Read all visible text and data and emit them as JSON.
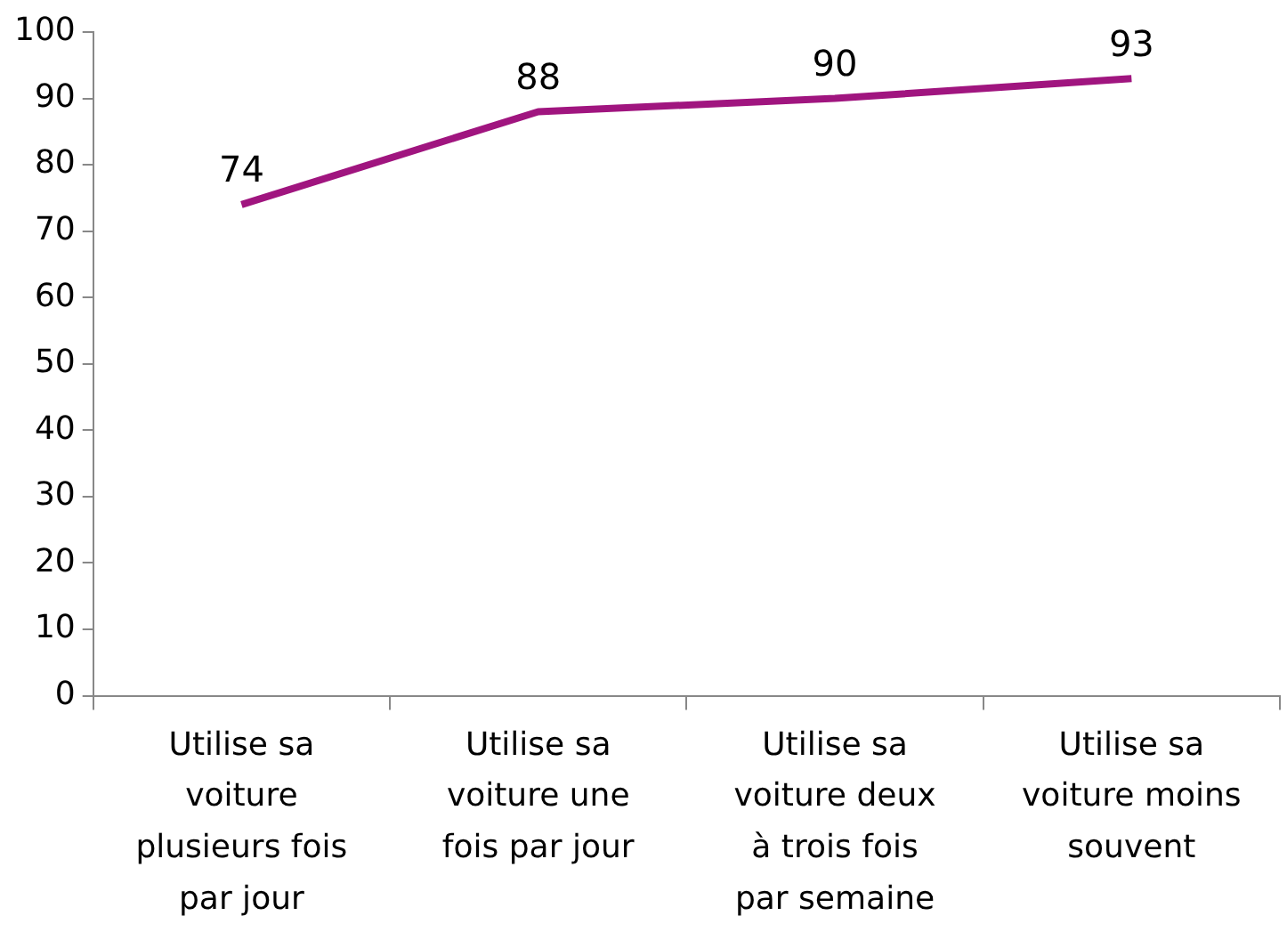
{
  "chart_data": {
    "type": "line",
    "categories": [
      "Utilise sa voiture plusieurs fois par jour",
      "Utilise sa voiture une fois par jour",
      "Utilise sa voiture deux à trois fois par semaine",
      "Utilise sa voiture moins souvent"
    ],
    "series": [
      {
        "color": "#a0157f",
        "values": [
          74,
          88,
          90,
          93
        ]
      }
    ],
    "ylim": [
      0,
      100
    ],
    "yticks": [
      0,
      10,
      20,
      30,
      40,
      50,
      60,
      70,
      80,
      90,
      100
    ],
    "grid": false,
    "legend": false,
    "marker": "none",
    "line_style": "solid",
    "data_labels": true
  }
}
